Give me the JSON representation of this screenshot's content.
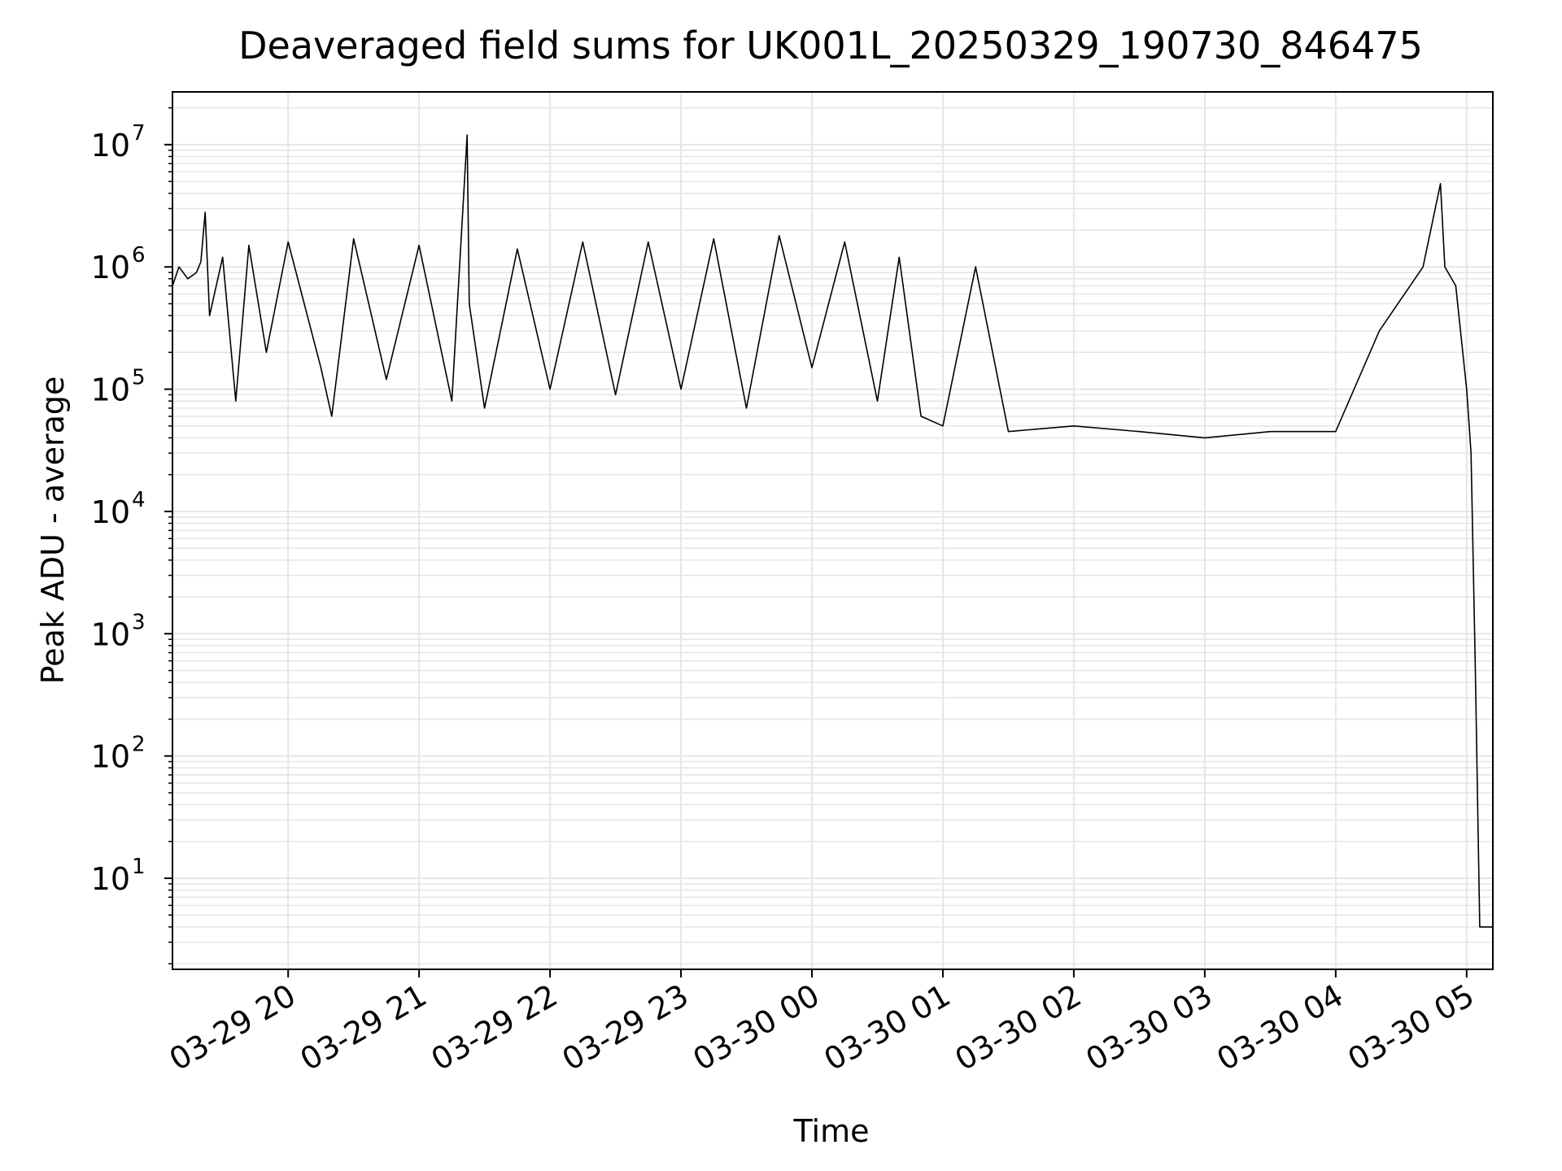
{
  "chart_data": {
    "type": "line",
    "title": "Deaveraged field sums for UK001L_20250329_190730_846475",
    "xlabel": "Time",
    "ylabel": "Peak ADU - average",
    "y_scale": "log",
    "grid": true,
    "line_color": "#000000",
    "grid_color": "#e6e6e6",
    "xlim": [
      "2025-03-29 19:07",
      "2025-03-30 05:12"
    ],
    "ylim": [
      1.8,
      27000000.0
    ],
    "x_tick_labels": [
      "03-29 20",
      "03-29 21",
      "03-29 22",
      "03-29 23",
      "03-30 00",
      "03-30 01",
      "03-30 02",
      "03-30 03",
      "03-30 04",
      "03-30 05"
    ],
    "y_tick_labels": [
      {
        "base": "10",
        "exp": "1"
      },
      {
        "base": "10",
        "exp": "2"
      },
      {
        "base": "10",
        "exp": "3"
      },
      {
        "base": "10",
        "exp": "4"
      },
      {
        "base": "10",
        "exp": "5"
      },
      {
        "base": "10",
        "exp": "6"
      },
      {
        "base": "10",
        "exp": "7"
      }
    ],
    "series": [
      {
        "points": [
          [
            "2025-03-29 19:07",
            700000
          ],
          [
            "2025-03-29 19:10",
            1000000
          ],
          [
            "2025-03-29 19:14",
            800000
          ],
          [
            "2025-03-29 19:18",
            900000
          ],
          [
            "2025-03-29 19:20",
            1100000
          ],
          [
            "2025-03-29 19:22",
            2800000
          ],
          [
            "2025-03-29 19:24",
            400000
          ],
          [
            "2025-03-29 19:30",
            1200000
          ],
          [
            "2025-03-29 19:36",
            80000
          ],
          [
            "2025-03-29 19:42",
            1500000
          ],
          [
            "2025-03-29 19:50",
            200000
          ],
          [
            "2025-03-29 20:00",
            1600000
          ],
          [
            "2025-03-29 20:15",
            150000
          ],
          [
            "2025-03-29 20:20",
            60000
          ],
          [
            "2025-03-29 20:30",
            1700000
          ],
          [
            "2025-03-29 20:45",
            120000
          ],
          [
            "2025-03-29 21:00",
            1500000
          ],
          [
            "2025-03-29 21:15",
            80000
          ],
          [
            "2025-03-29 21:22",
            12000000
          ],
          [
            "2025-03-29 21:23",
            500000
          ],
          [
            "2025-03-29 21:30",
            70000
          ],
          [
            "2025-03-29 21:45",
            1400000
          ],
          [
            "2025-03-29 22:00",
            100000
          ],
          [
            "2025-03-29 22:15",
            1600000
          ],
          [
            "2025-03-29 22:30",
            90000
          ],
          [
            "2025-03-29 22:45",
            1600000
          ],
          [
            "2025-03-29 23:00",
            100000
          ],
          [
            "2025-03-29 23:15",
            1700000
          ],
          [
            "2025-03-29 23:30",
            70000
          ],
          [
            "2025-03-29 23:45",
            1800000
          ],
          [
            "2025-03-30 00:00",
            150000
          ],
          [
            "2025-03-30 00:15",
            1600000
          ],
          [
            "2025-03-30 00:30",
            80000
          ],
          [
            "2025-03-30 00:40",
            1200000
          ],
          [
            "2025-03-30 00:50",
            60000
          ],
          [
            "2025-03-30 01:00",
            50000
          ],
          [
            "2025-03-30 01:15",
            1000000
          ],
          [
            "2025-03-30 01:30",
            45000
          ],
          [
            "2025-03-30 02:00",
            50000
          ],
          [
            "2025-03-30 02:30",
            45000
          ],
          [
            "2025-03-30 03:00",
            40000
          ],
          [
            "2025-03-30 03:30",
            45000
          ],
          [
            "2025-03-30 04:00",
            45000
          ],
          [
            "2025-03-30 04:20",
            300000
          ],
          [
            "2025-03-30 04:40",
            1000000
          ],
          [
            "2025-03-30 04:48",
            4800000
          ],
          [
            "2025-03-30 04:50",
            1000000
          ],
          [
            "2025-03-30 04:55",
            700000
          ],
          [
            "2025-03-30 05:00",
            100000
          ],
          [
            "2025-03-30 05:02",
            30000
          ],
          [
            "2025-03-30 05:04",
            500
          ],
          [
            "2025-03-30 05:06",
            4
          ],
          [
            "2025-03-30 05:12",
            4
          ]
        ]
      }
    ]
  }
}
